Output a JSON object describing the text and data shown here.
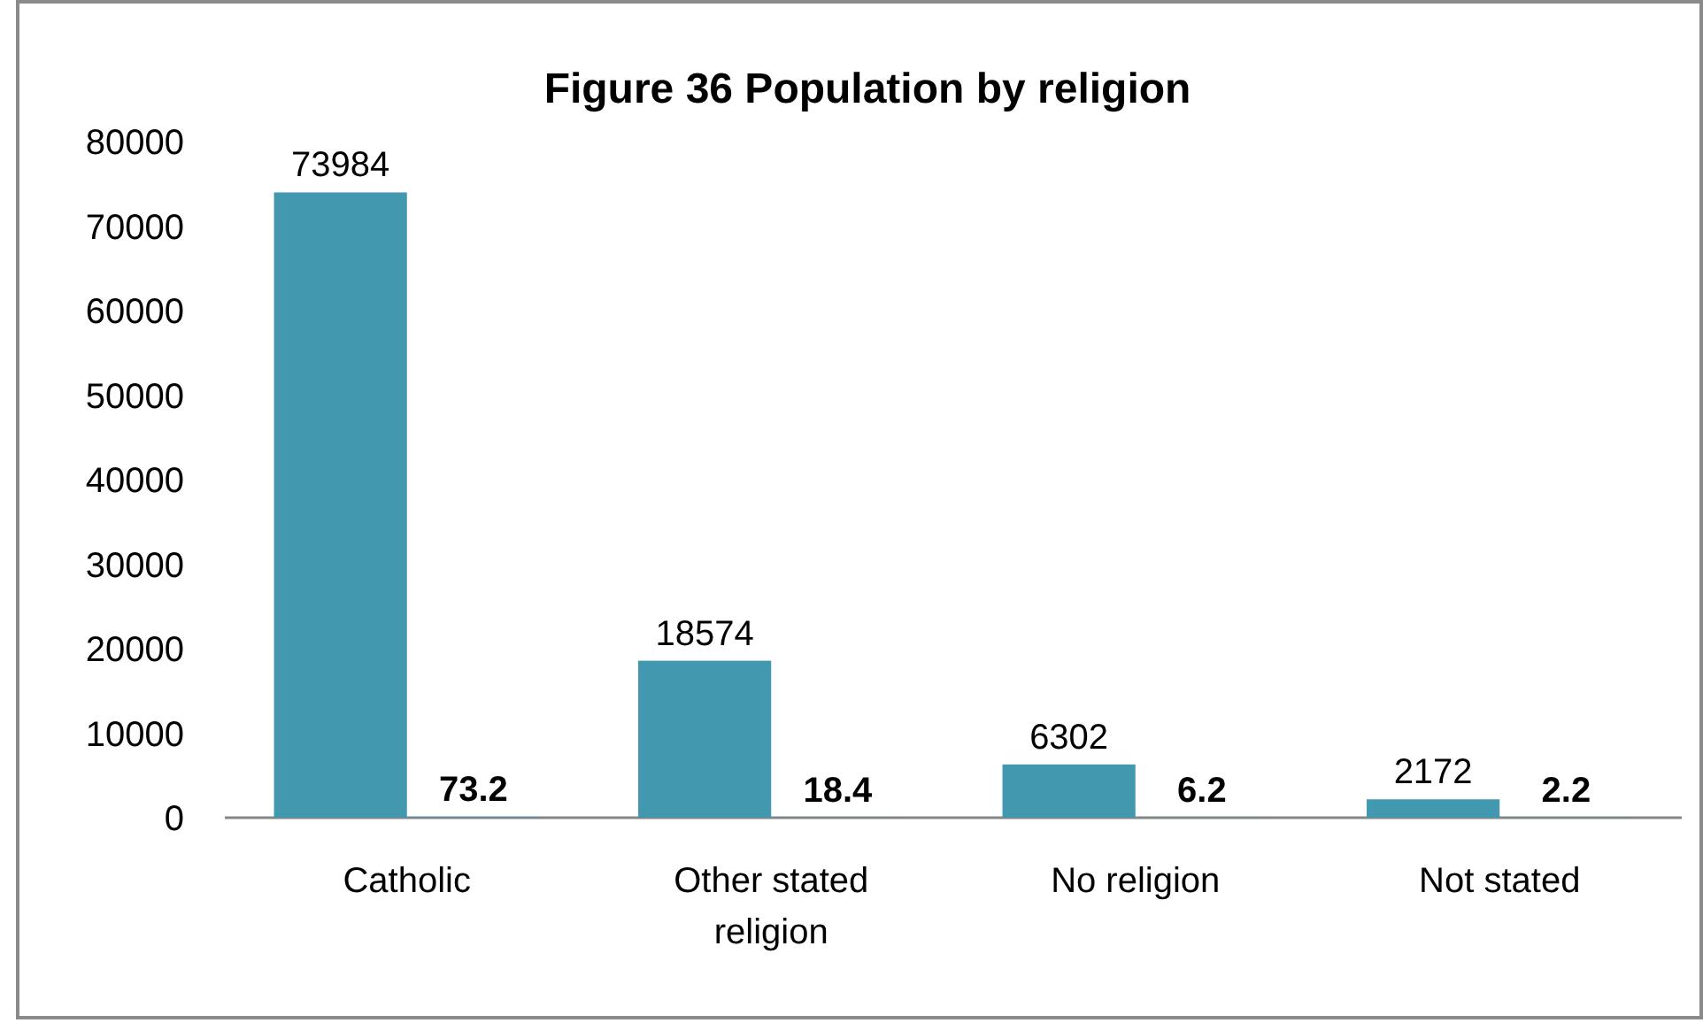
{
  "chart_data": {
    "type": "bar",
    "title": "Figure 36 Population by religion",
    "categories": [
      "Catholic",
      "Other stated religion",
      "No religion",
      "Not stated"
    ],
    "series": [
      {
        "values": [
          73984,
          18574,
          6302,
          2172
        ],
        "color": "#4198af"
      },
      {
        "values": [
          73.2,
          18.4,
          6.2,
          2.2
        ],
        "color": "#4198af"
      }
    ],
    "ylim": [
      0,
      80000
    ],
    "yticks": [
      0,
      10000,
      20000,
      30000,
      40000,
      50000,
      60000,
      70000,
      80000
    ],
    "grid": false,
    "data_labels": true
  }
}
